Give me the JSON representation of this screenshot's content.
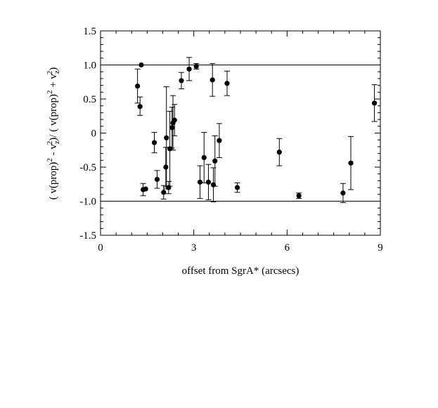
{
  "chart_data": {
    "type": "scatter",
    "xlabel": "offset from SgrA* (arcsecs)",
    "ylabel": {
      "p1": "( v(prop)",
      "e1": "2",
      "p2": " - v",
      "s1": "z",
      "e2": "2",
      "p3": ")/ ( v(prop)",
      "e3": "2",
      "p4": " + v",
      "s2": "z",
      "e4": "2",
      "p5": ")"
    },
    "xlim": [
      0,
      9
    ],
    "ylim": [
      -1.5,
      1.5
    ],
    "x_ticks": [
      0,
      3,
      6,
      9
    ],
    "x_tick_labels": [
      "0",
      "3",
      "6",
      "9"
    ],
    "y_ticks": [
      -1.5,
      -1.0,
      -0.5,
      0,
      0.5,
      1.0,
      1.5
    ],
    "y_tick_labels": [
      "-1.5",
      "-1.0",
      "-0.5",
      "0",
      "0.5",
      "1.0",
      "1.5"
    ],
    "reference_lines": [
      1.0,
      -1.0
    ],
    "grid": false,
    "legend": "none",
    "marker_color": "#000000",
    "points": [
      {
        "x": 1.19,
        "y": 0.69,
        "err_low": 0.25,
        "err_high": 0.25
      },
      {
        "x": 1.27,
        "y": 0.39,
        "err_low": 0.13,
        "err_high": 0.14
      },
      {
        "x": 1.31,
        "y": 1.0,
        "err_low": 0,
        "err_high": 0
      },
      {
        "x": 1.37,
        "y": -0.83,
        "err_low": 0.09,
        "err_high": 0.09
      },
      {
        "x": 1.45,
        "y": -0.82,
        "err_low": 0,
        "err_high": 0
      },
      {
        "x": 1.73,
        "y": -0.14,
        "err_low": 0.15,
        "err_high": 0.15
      },
      {
        "x": 1.82,
        "y": -0.68,
        "err_low": 0.13,
        "err_high": 0.13
      },
      {
        "x": 2.03,
        "y": -0.87,
        "err_low": 0.1,
        "err_high": 0.1
      },
      {
        "x": 2.1,
        "y": -0.5,
        "err_low": 0.29,
        "err_high": 0.29
      },
      {
        "x": 2.12,
        "y": -0.07,
        "err_low": 0.75,
        "err_high": 0.75
      },
      {
        "x": 2.19,
        "y": -0.8,
        "err_low": 0.09,
        "err_high": 0.09
      },
      {
        "x": 2.23,
        "y": -0.23,
        "err_low": 0.55,
        "err_high": 0.55
      },
      {
        "x": 2.3,
        "y": 0.08,
        "err_low": 0.3,
        "err_high": 0.3
      },
      {
        "x": 2.33,
        "y": 0.15,
        "err_low": 0.4,
        "err_high": 0.4
      },
      {
        "x": 2.38,
        "y": 0.19,
        "err_low": 0.23,
        "err_high": 0.23
      },
      {
        "x": 2.6,
        "y": 0.77,
        "err_low": 0.12,
        "err_high": 0.12
      },
      {
        "x": 2.85,
        "y": 0.94,
        "err_low": 0.17,
        "err_high": 0.17
      },
      {
        "x": 3.08,
        "y": 0.98,
        "err_low": 0.04,
        "err_high": 0.04
      },
      {
        "x": 3.2,
        "y": -0.72,
        "err_low": 0.24,
        "err_high": 0.24
      },
      {
        "x": 3.33,
        "y": -0.36,
        "err_low": 0.37,
        "err_high": 0.37
      },
      {
        "x": 3.47,
        "y": -0.72,
        "err_low": 0.26,
        "err_high": 0.26
      },
      {
        "x": 3.6,
        "y": 0.78,
        "err_low": 0.24,
        "err_high": 0.24
      },
      {
        "x": 3.63,
        "y": -0.76,
        "err_low": 0.25,
        "err_high": 0.25
      },
      {
        "x": 3.68,
        "y": -0.41,
        "err_low": 0.37,
        "err_high": 0.37
      },
      {
        "x": 3.82,
        "y": -0.11,
        "err_low": 0.25,
        "err_high": 0.25
      },
      {
        "x": 4.07,
        "y": 0.73,
        "err_low": 0.18,
        "err_high": 0.18
      },
      {
        "x": 4.4,
        "y": -0.8,
        "err_low": 0.07,
        "err_high": 0.07
      },
      {
        "x": 5.75,
        "y": -0.28,
        "err_low": 0.2,
        "err_high": 0.2
      },
      {
        "x": 6.38,
        "y": -0.92,
        "err_low": 0.04,
        "err_high": 0.04
      },
      {
        "x": 7.8,
        "y": -0.88,
        "err_low": 0.14,
        "err_high": 0.14
      },
      {
        "x": 8.05,
        "y": -0.44,
        "err_low": 0.39,
        "err_high": 0.39
      },
      {
        "x": 8.81,
        "y": 0.44,
        "err_low": 0.27,
        "err_high": 0.27
      }
    ]
  }
}
